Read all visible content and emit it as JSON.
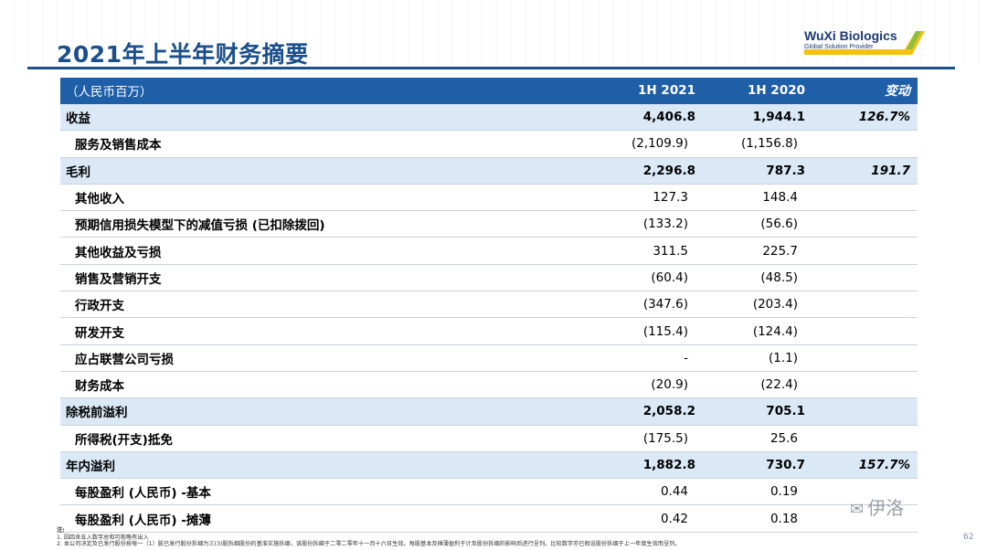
{
  "title": "2021年上半年财务摘要",
  "logo": {
    "name": "WuXi Biologics",
    "tagline": "Global Solution Provider"
  },
  "table": {
    "header": {
      "label": "（人民币百万）",
      "col1": "1H 2021",
      "col2": "1H 2020",
      "change": "变动"
    },
    "rows": [
      {
        "label": "收益",
        "v1": "4,406.8",
        "v2": "1,944.1",
        "change": "126.7%",
        "type": "sub"
      },
      {
        "label": "服务及销售成本",
        "v1": "(2,109.9)",
        "v2": "(1,156.8)",
        "change": "",
        "type": "plain"
      },
      {
        "label": "毛利",
        "v1": "2,296.8",
        "v2": "787.3",
        "change": "191.7",
        "type": "sub"
      },
      {
        "label": "其他收入",
        "v1": "127.3",
        "v2": "148.4",
        "change": "",
        "type": "plain"
      },
      {
        "label": "预期信用损失模型下的减值亏损 (已扣除拨回)",
        "v1": "(133.2)",
        "v2": "(56.6)",
        "change": "",
        "type": "plain"
      },
      {
        "label": "其他收益及亏损",
        "v1": "311.5",
        "v2": "225.7",
        "change": "",
        "type": "plain"
      },
      {
        "label": "销售及营销开支",
        "v1": "(60.4)",
        "v2": "(48.5)",
        "change": "",
        "type": "plain"
      },
      {
        "label": "行政开支",
        "v1": "(347.6)",
        "v2": "(203.4)",
        "change": "",
        "type": "plain"
      },
      {
        "label": "研发开支",
        "v1": "(115.4)",
        "v2": "(124.4)",
        "change": "",
        "type": "plain"
      },
      {
        "label": "应占联营公司亏损",
        "v1": "-",
        "v2": "(1.1)",
        "change": "",
        "type": "plain"
      },
      {
        "label": "财务成本",
        "v1": "(20.9)",
        "v2": "(22.4)",
        "change": "",
        "type": "plain"
      },
      {
        "label": "除税前溢利",
        "v1": "2,058.2",
        "v2": "705.1",
        "change": "",
        "type": "sub"
      },
      {
        "label": "所得税(开支)抵免",
        "v1": "(175.5)",
        "v2": "25.6",
        "change": "",
        "type": "plain"
      },
      {
        "label": "年内溢利",
        "v1": "1,882.8",
        "v2": "730.7",
        "change": "157.7%",
        "type": "sub"
      },
      {
        "label": "每股盈利 (人民币) -基本",
        "v1": "0.44",
        "v2": "0.19",
        "change": "",
        "type": "plain"
      },
      {
        "label": "每股盈利 (人民币) -摊薄",
        "v1": "0.42",
        "v2": "0.18",
        "change": "",
        "type": "plain"
      }
    ]
  },
  "notes": {
    "heading": "注:",
    "lines": [
      "1. 因四舍五入数字总和可能略有出入",
      "2. 本公司决定及已发行股份按每一（1）股已发行股份拆细为三(3)股拆细股份的基准实施拆细，该股份拆细于二零二零年十一月十六日生效。每股基本及摊薄盈利于计及股份拆细的影响后进行呈列。比较数字亦已假设股份拆细于上一年度生效而呈列。"
    ]
  },
  "page_number": "62",
  "watermark": "伊洛",
  "colors": {
    "header_blue": "#1f5fa8",
    "subtotal_fill": "#dbe9f6",
    "title_blue": "#1b4f8c"
  }
}
